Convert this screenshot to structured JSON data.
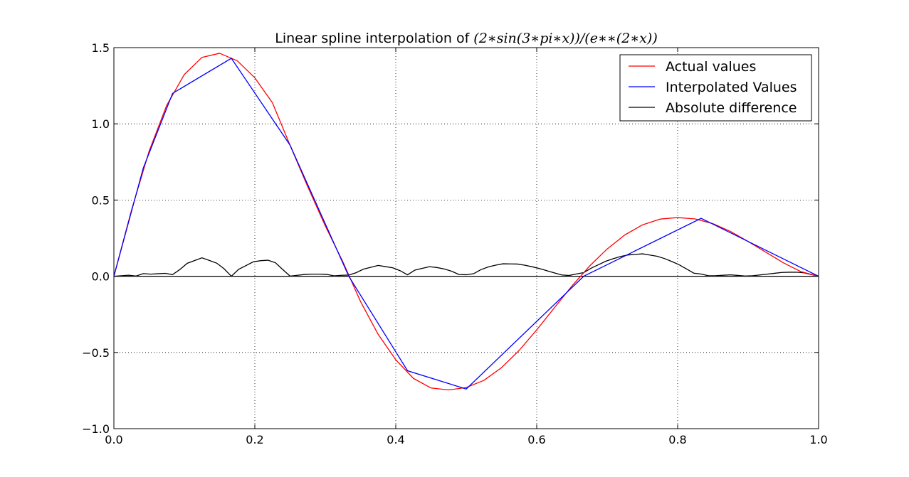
{
  "chart_data": {
    "type": "line",
    "title": "Linear spline interpolation of ",
    "title_math": "(2∗sin(3∗pi∗x))/(e∗∗(2∗x))",
    "xlabel": "",
    "ylabel": "",
    "xlim": [
      0.0,
      1.0
    ],
    "ylim": [
      -1.0,
      1.5
    ],
    "x_ticks": [
      0.0,
      0.2,
      0.4,
      0.6,
      0.8,
      1.0
    ],
    "x_tick_labels": [
      "0.0",
      "0.2",
      "0.4",
      "0.6",
      "0.8",
      "1.0"
    ],
    "y_ticks": [
      -1.0,
      -0.5,
      0.0,
      0.5,
      1.0,
      1.5
    ],
    "y_tick_labels": [
      "−1.0",
      "−0.5",
      "0.0",
      "0.5",
      "1.0",
      "1.5"
    ],
    "grid": true,
    "legend_position": "top-right",
    "knots": [
      0.0,
      0.0417,
      0.0833,
      0.125,
      0.1667,
      0.2083,
      0.25,
      0.2917,
      0.3333,
      0.375,
      0.4167,
      0.4583,
      0.5,
      0.5417,
      0.5833,
      0.625,
      0.6667,
      0.7083,
      0.75,
      0.7917,
      0.8333,
      0.875,
      0.9167,
      0.9583,
      1.0
    ],
    "series": [
      {
        "name": "Actual values",
        "color": "#ff0000",
        "x": [
          0.0,
          0.025,
          0.05,
          0.075,
          0.1,
          0.125,
          0.15,
          0.175,
          0.2,
          0.225,
          0.25,
          0.275,
          0.3,
          0.325,
          0.35,
          0.375,
          0.4,
          0.425,
          0.45,
          0.475,
          0.5,
          0.525,
          0.55,
          0.575,
          0.6,
          0.625,
          0.65,
          0.675,
          0.7,
          0.725,
          0.75,
          0.775,
          0.8,
          0.825,
          0.85,
          0.875,
          0.9,
          0.925,
          0.95,
          0.975,
          1.0
        ],
        "y": [
          0.0,
          0.434,
          0.821,
          1.122,
          1.324,
          1.436,
          1.463,
          1.414,
          1.302,
          1.138,
          0.859,
          0.588,
          0.33,
          0.094,
          -0.166,
          -0.381,
          -0.548,
          -0.67,
          -0.733,
          -0.746,
          -0.73,
          -0.683,
          -0.6,
          -0.487,
          -0.352,
          -0.207,
          -0.064,
          0.067,
          0.179,
          0.271,
          0.337,
          0.375,
          0.385,
          0.376,
          0.345,
          0.294,
          0.228,
          0.158,
          0.088,
          0.03,
          0.0
        ]
      },
      {
        "name": "Interpolated Values",
        "color": "#0000ff",
        "x": [
          0.0,
          0.0417,
          0.0833,
          0.1667,
          0.25,
          0.3333,
          0.4167,
          0.5,
          0.6667,
          0.8333,
          1.0
        ],
        "y": [
          0.0,
          0.71,
          1.2,
          1.43,
          0.86,
          0.0,
          -0.62,
          -0.74,
          0.0,
          0.38,
          0.0
        ]
      },
      {
        "name": "Absolute difference",
        "color": "#000000",
        "abs_difference": true
      }
    ]
  }
}
